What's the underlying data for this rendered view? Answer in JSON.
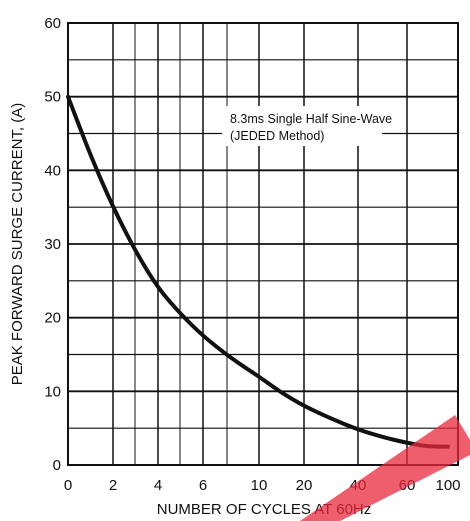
{
  "chart_data": {
    "type": "line",
    "title": "",
    "xlabel": "NUMBER OF CYCLES AT 60Hz",
    "ylabel": "PEAK FORWARD SURGE CURRENT, (A)",
    "x_ticks": [
      "0",
      "2",
      "4",
      "6",
      "10",
      "20",
      "40",
      "60",
      "100"
    ],
    "y_ticks": [
      "0",
      "10",
      "20",
      "30",
      "40",
      "50",
      "60"
    ],
    "ylim": [
      0,
      60
    ],
    "grid": true,
    "annotation": [
      "8.3ms Single Half Sine-Wave",
      "(JEDED Method)"
    ],
    "series": [
      {
        "x": [
          0,
          1,
          2,
          3,
          4,
          5,
          6,
          8,
          10,
          15,
          20,
          30,
          40,
          50,
          60,
          80,
          100
        ],
        "y": [
          50,
          42,
          35,
          29,
          24,
          20.5,
          17.5,
          14.5,
          12,
          9.8,
          8,
          6.3,
          4.8,
          3.8,
          3,
          2.5,
          2.5
        ],
        "color": "#111111"
      }
    ]
  },
  "watermark_color": "#e8283c"
}
